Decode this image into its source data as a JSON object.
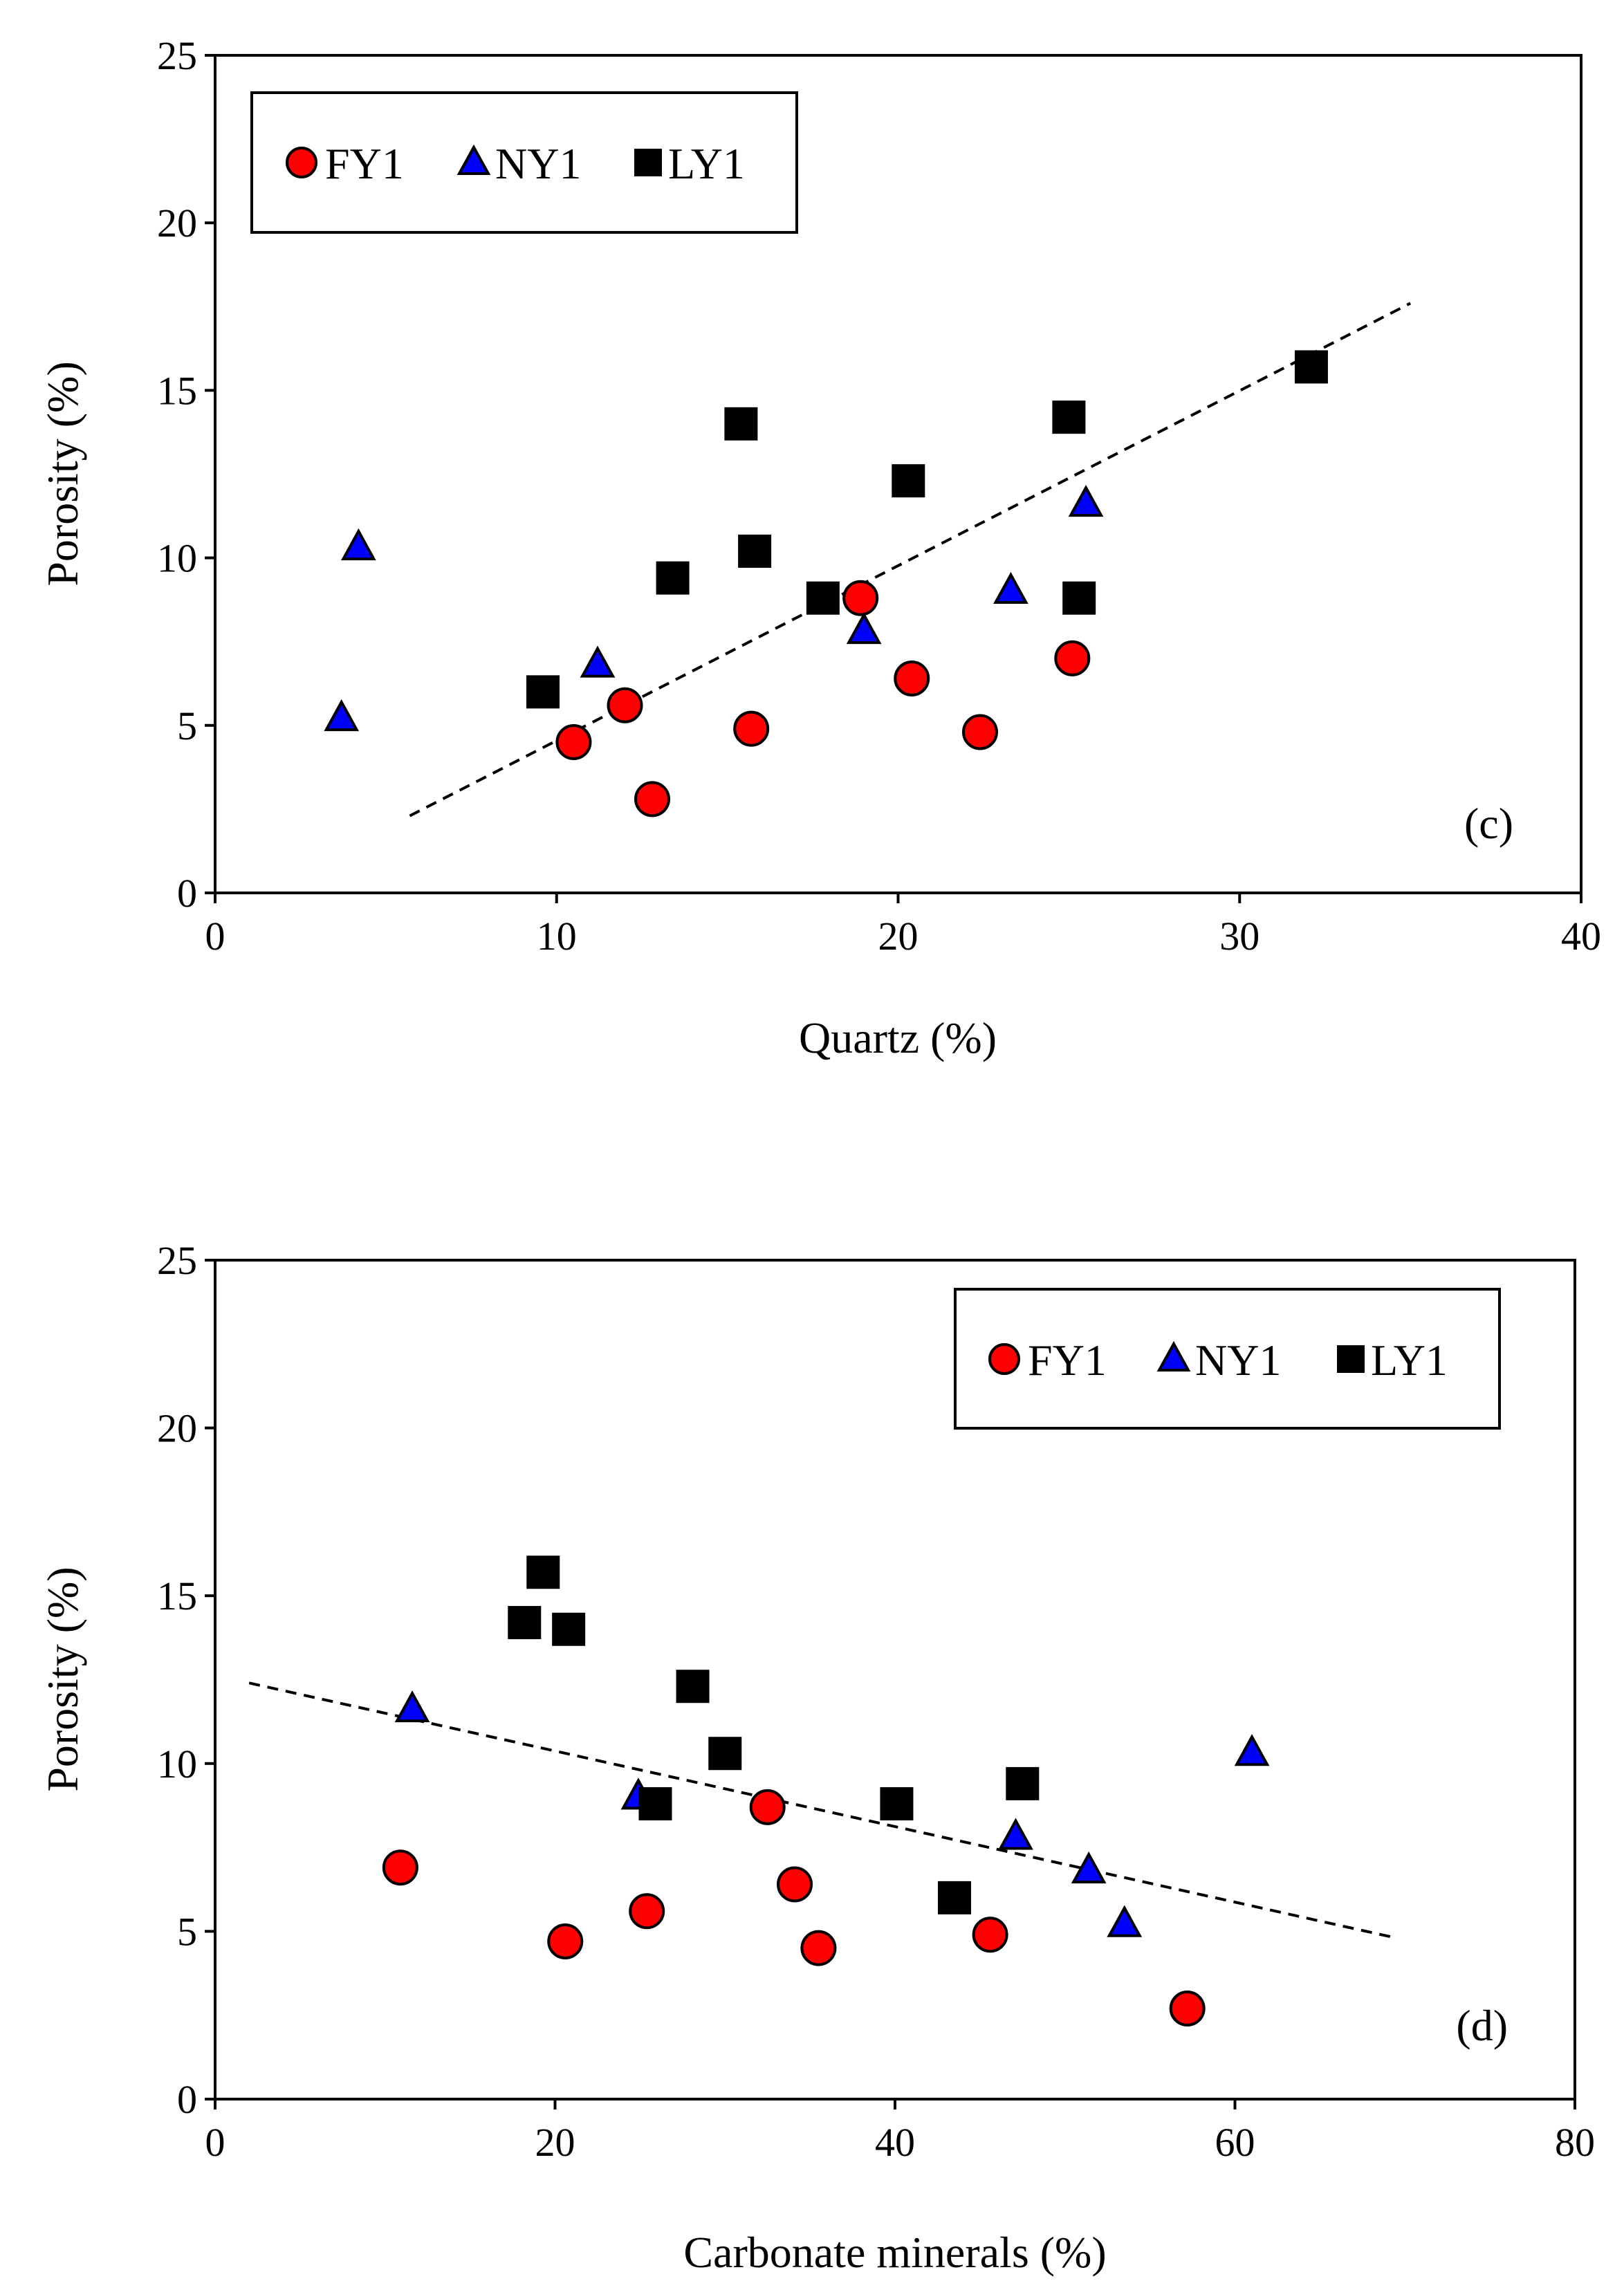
{
  "chart_data": [
    {
      "type": "scatter",
      "panel_label": "(c)",
      "xlabel": "Quartz (%)",
      "ylabel": "Porosity (%)",
      "xlim": [
        0,
        40
      ],
      "ylim": [
        0,
        25
      ],
      "xticks": [
        0,
        10,
        20,
        30,
        40
      ],
      "yticks": [
        0,
        5,
        10,
        15,
        20,
        25
      ],
      "legend_position": "top-left",
      "series": [
        {
          "name": "FY1",
          "marker": "circle",
          "color": "#ff0000",
          "points": [
            [
              10.5,
              4.5
            ],
            [
              12.0,
              5.6
            ],
            [
              12.8,
              2.8
            ],
            [
              15.7,
              4.9
            ],
            [
              18.9,
              8.8
            ],
            [
              20.4,
              6.4
            ],
            [
              22.4,
              4.8
            ],
            [
              25.1,
              7.0
            ]
          ]
        },
        {
          "name": "NY1",
          "marker": "triangle",
          "color": "#0000ff",
          "points": [
            [
              3.7,
              5.2
            ],
            [
              4.2,
              10.3
            ],
            [
              11.2,
              6.8
            ],
            [
              19.0,
              7.8
            ],
            [
              23.3,
              9.0
            ],
            [
              25.5,
              11.6
            ]
          ]
        },
        {
          "name": "LY1",
          "marker": "square",
          "color": "#000000",
          "points": [
            [
              9.6,
              6.0
            ],
            [
              13.4,
              9.4
            ],
            [
              15.4,
              14.0
            ],
            [
              15.8,
              10.2
            ],
            [
              17.8,
              8.8
            ],
            [
              20.3,
              12.3
            ],
            [
              25.0,
              14.2
            ],
            [
              25.3,
              8.8
            ],
            [
              32.1,
              15.7
            ]
          ]
        }
      ],
      "trendline": {
        "style": "dashed",
        "x": [
          5.7,
          35.0
        ],
        "y": [
          2.3,
          17.6
        ]
      }
    },
    {
      "type": "scatter",
      "panel_label": "(d)",
      "xlabel": "Carbonate minerals (%)",
      "ylabel": "Porosity (%)",
      "xlim": [
        0,
        80
      ],
      "ylim": [
        0,
        25
      ],
      "xticks": [
        0,
        20,
        40,
        60,
        80
      ],
      "yticks": [
        0,
        5,
        10,
        15,
        20,
        25
      ],
      "legend_position": "top-right",
      "series": [
        {
          "name": "FY1",
          "marker": "circle",
          "color": "#ff0000",
          "points": [
            [
              10.9,
              6.9
            ],
            [
              20.6,
              4.7
            ],
            [
              25.4,
              5.6
            ],
            [
              32.5,
              8.7
            ],
            [
              34.1,
              6.4
            ],
            [
              35.5,
              4.5
            ],
            [
              45.6,
              4.9
            ],
            [
              57.2,
              2.7
            ]
          ]
        },
        {
          "name": "NY1",
          "marker": "triangle",
          "color": "#0000ff",
          "points": [
            [
              11.6,
              11.6
            ],
            [
              24.9,
              9.0
            ],
            [
              47.1,
              7.8
            ],
            [
              51.4,
              6.8
            ],
            [
              53.5,
              5.2
            ],
            [
              61.0,
              10.3
            ]
          ]
        },
        {
          "name": "LY1",
          "marker": "square",
          "color": "#000000",
          "points": [
            [
              18.2,
              14.2
            ],
            [
              19.3,
              15.7
            ],
            [
              20.8,
              14.0
            ],
            [
              25.9,
              8.8
            ],
            [
              28.1,
              12.3
            ],
            [
              30.0,
              10.3
            ],
            [
              40.1,
              8.8
            ],
            [
              43.5,
              6.0
            ],
            [
              47.5,
              9.4
            ]
          ]
        }
      ],
      "trendline": {
        "style": "dashed",
        "x": [
          2.0,
          69.5
        ],
        "y": [
          12.4,
          4.8
        ]
      }
    }
  ]
}
